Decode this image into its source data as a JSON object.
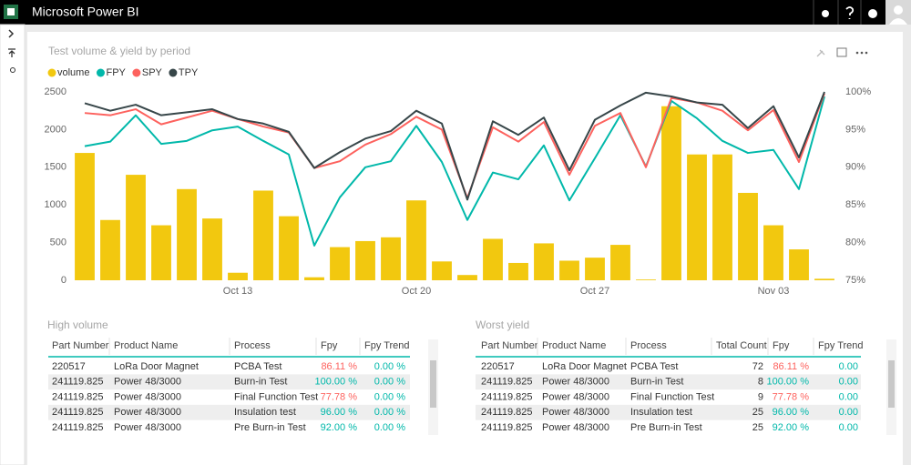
{
  "header": {
    "title": "Microsoft Power BI"
  },
  "chart_data": {
    "type": "combo",
    "title": "Test volume & yield by period",
    "categories": [
      null,
      null,
      null,
      null,
      null,
      null,
      "Oct 13",
      null,
      null,
      null,
      null,
      null,
      null,
      "Oct 20",
      null,
      null,
      null,
      null,
      null,
      null,
      "Oct 27",
      null,
      null,
      null,
      null,
      null,
      null,
      "Nov 03",
      null,
      null
    ],
    "series": [
      {
        "name": "volume",
        "type": "bar",
        "color": "#f2c80f",
        "values": [
          1690,
          800,
          1400,
          730,
          1210,
          820,
          100,
          1190,
          850,
          40,
          440,
          520,
          570,
          1060,
          250,
          70,
          550,
          230,
          490,
          260,
          300,
          470,
          10,
          2310,
          1670,
          1670,
          1160,
          730,
          410,
          20
        ]
      },
      {
        "name": "FPY",
        "type": "line",
        "axis": "y2",
        "color": "#01b8aa",
        "values": [
          92.8,
          93.4,
          96.9,
          93.1,
          93.5,
          94.9,
          95.4,
          93.5,
          91.7,
          79.6,
          86.0,
          90.0,
          90.8,
          95.5,
          90.7,
          83.0,
          89.3,
          88.4,
          92.9,
          85.6,
          91.2,
          96.9,
          90.1,
          98.8,
          96.5,
          93.5,
          91.9,
          92.3,
          87.1,
          99.4
        ]
      },
      {
        "name": "SPY",
        "type": "line",
        "axis": "y2",
        "color": "#fd625e",
        "values": [
          97.2,
          96.9,
          97.7,
          95.7,
          96.6,
          97.5,
          96.4,
          95.4,
          94.6,
          89.9,
          90.8,
          93.0,
          94.4,
          96.7,
          95.0,
          85.9,
          95.3,
          93.4,
          96.0,
          89.0,
          95.5,
          97.2,
          90.0,
          99.2,
          98.6,
          97.5,
          94.9,
          97.6,
          90.7,
          99.8
        ]
      },
      {
        "name": "TPY",
        "type": "line",
        "axis": "y2",
        "color": "#374649",
        "values": [
          98.5,
          97.5,
          98.3,
          96.9,
          97.3,
          97.7,
          96.4,
          95.8,
          94.7,
          89.9,
          92.0,
          93.8,
          94.8,
          97.5,
          95.8,
          85.7,
          96.1,
          94.3,
          96.6,
          89.6,
          96.3,
          98.2,
          99.9,
          99.4,
          98.6,
          98.3,
          95.2,
          98.1,
          91.3,
          100
        ]
      }
    ],
    "ylim": [
      0,
      2500
    ],
    "yticks": [
      0,
      500,
      1000,
      1500,
      2000,
      2500
    ],
    "y2lim": [
      75,
      100
    ],
    "y2ticks": [
      {
        "value": 75,
        "label": "75%"
      },
      {
        "value": 80,
        "label": "80%"
      },
      {
        "value": 85,
        "label": "85%"
      },
      {
        "value": 90,
        "label": "90%"
      },
      {
        "value": 95,
        "label": "95%"
      },
      {
        "value": 100,
        "label": "100%"
      }
    ],
    "grid": false,
    "legend": "top-left"
  },
  "tables": [
    {
      "title": "High volume",
      "columns": [
        "Part Number",
        "Product Name",
        "Process",
        "Fpy",
        "Fpy Trend"
      ],
      "rows": [
        [
          "220517",
          "LoRa Door Magnet",
          "PCBA Test",
          "86.11 %",
          "0.00 %"
        ],
        [
          "241119.825",
          "Power 48/3000",
          "Burn-in Test",
          "100.00 %",
          "0.00 %"
        ],
        [
          "241119.825",
          "Power 48/3000",
          "Final Function Test",
          "77.78 %",
          "0.00 %"
        ],
        [
          "241119.825",
          "Power 48/3000",
          "Insulation test",
          "96.00 %",
          "0.00 %"
        ],
        [
          "241119.825",
          "Power 48/3000",
          "Pre Burn-in Test",
          "92.00 %",
          "0.00 %"
        ]
      ],
      "fpy_colors": [
        "#fd625e",
        "#01b8aa",
        "#fd625e",
        "#01b8aa",
        "#01b8aa"
      ],
      "trend_color": "#01b8aa"
    },
    {
      "title": "Worst yield",
      "columns": [
        "Part Number",
        "Product Name",
        "Process",
        "Total Count",
        "Fpy",
        "Fpy Trend"
      ],
      "rows": [
        [
          "220517",
          "LoRa Door Magnet",
          "PCBA Test",
          72,
          "86.11 %",
          "0.00"
        ],
        [
          "241119.825",
          "Power 48/3000",
          "Burn-in Test",
          8,
          "100.00 %",
          "0.00"
        ],
        [
          "241119.825",
          "Power 48/3000",
          "Final Function Test",
          9,
          "77.78 %",
          "0.00"
        ],
        [
          "241119.825",
          "Power 48/3000",
          "Insulation test",
          25,
          "96.00 %",
          "0.00"
        ],
        [
          "241119.825",
          "Power 48/3000",
          "Pre Burn-in Test",
          25,
          "92.00 %",
          "0.00"
        ]
      ],
      "fpy_colors": [
        "#fd625e",
        "#01b8aa",
        "#fd625e",
        "#01b8aa",
        "#01b8aa"
      ],
      "trend_color": "#01b8aa"
    }
  ]
}
